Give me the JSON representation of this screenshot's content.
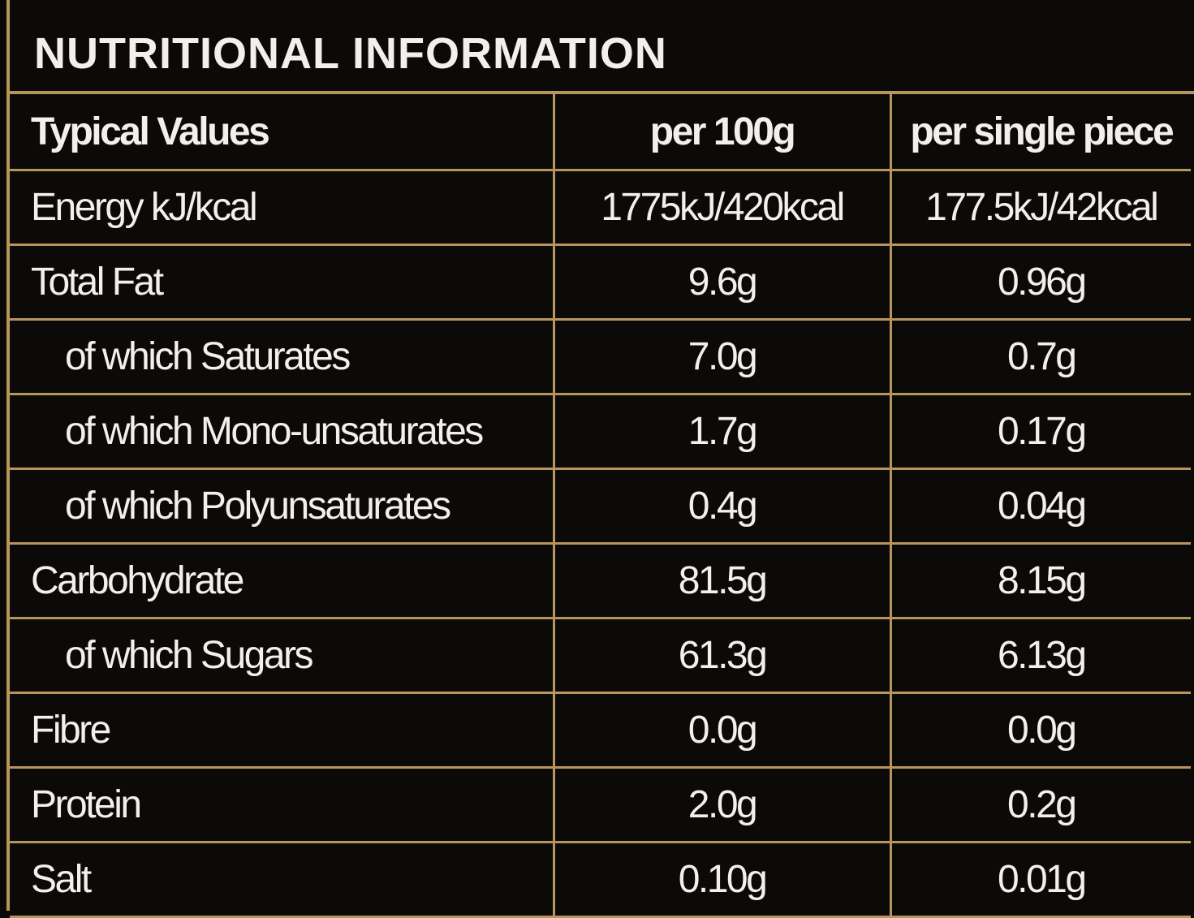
{
  "title": "NUTRITIONAL INFORMATION",
  "table": {
    "header": [
      "Typical Values",
      "per 100g",
      "per single piece"
    ],
    "rows": [
      [
        "Energy kJ/kcal",
        "1775kJ/420kcal",
        "177.5kJ/42kcal"
      ],
      [
        "Total Fat",
        "9.6g",
        "0.96g"
      ],
      [
        "of which Saturates",
        "7.0g",
        "0.7g"
      ],
      [
        "of which Mono-unsaturates",
        "1.7g",
        "0.17g"
      ],
      [
        "of which Polyunsaturates",
        "0.4g",
        "0.04g"
      ],
      [
        "Carbohydrate",
        "81.5g",
        "8.15g"
      ],
      [
        "of which Sugars",
        "61.3g",
        "6.13g"
      ],
      [
        "Fibre",
        "0.0g",
        "0.0g"
      ],
      [
        "Protein",
        "2.0g",
        "0.2g"
      ],
      [
        "Salt",
        "0.10g",
        "0.01g"
      ]
    ]
  }
}
